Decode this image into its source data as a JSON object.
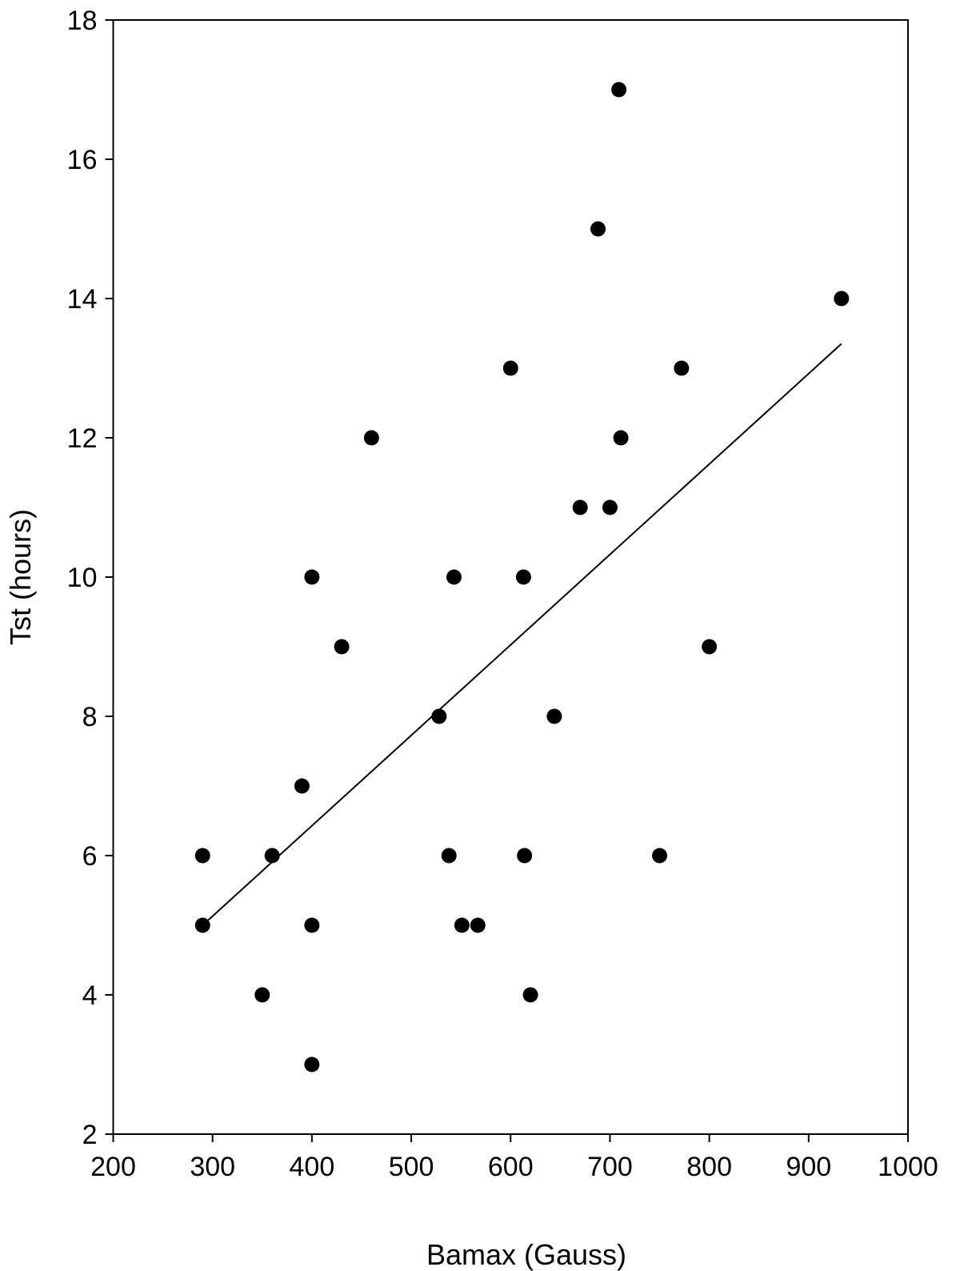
{
  "chart_data": {
    "type": "scatter",
    "title": "",
    "xlabel": "Bamax (Gauss)",
    "ylabel": "Tst (hours)",
    "xlim": [
      200,
      1000
    ],
    "ylim": [
      2,
      18
    ],
    "xticks": [
      200,
      300,
      400,
      500,
      600,
      700,
      800,
      900,
      1000
    ],
    "yticks": [
      2,
      4,
      6,
      8,
      10,
      12,
      14,
      16,
      18
    ],
    "grid": false,
    "legend": "none",
    "point_color": "#000000",
    "line_color": "#000000",
    "series": [
      {
        "type": "scatter",
        "points": [
          {
            "x": 290,
            "y": 6
          },
          {
            "x": 290,
            "y": 5
          },
          {
            "x": 350,
            "y": 4
          },
          {
            "x": 360,
            "y": 6
          },
          {
            "x": 390,
            "y": 7
          },
          {
            "x": 400,
            "y": 10
          },
          {
            "x": 400,
            "y": 5
          },
          {
            "x": 400,
            "y": 3
          },
          {
            "x": 430,
            "y": 9
          },
          {
            "x": 460,
            "y": 12
          },
          {
            "x": 528,
            "y": 8
          },
          {
            "x": 538,
            "y": 6
          },
          {
            "x": 543,
            "y": 10
          },
          {
            "x": 551,
            "y": 5
          },
          {
            "x": 567,
            "y": 5
          },
          {
            "x": 600,
            "y": 13
          },
          {
            "x": 613,
            "y": 10
          },
          {
            "x": 614,
            "y": 6
          },
          {
            "x": 620,
            "y": 4
          },
          {
            "x": 644,
            "y": 8
          },
          {
            "x": 670,
            "y": 11
          },
          {
            "x": 688,
            "y": 15
          },
          {
            "x": 700,
            "y": 11
          },
          {
            "x": 709,
            "y": 17
          },
          {
            "x": 711,
            "y": 12
          },
          {
            "x": 750,
            "y": 6
          },
          {
            "x": 772,
            "y": 13
          },
          {
            "x": 800,
            "y": 9
          },
          {
            "x": 933,
            "y": 14
          }
        ]
      },
      {
        "type": "line",
        "points": [
          {
            "x": 290,
            "y": 5.0
          },
          {
            "x": 933,
            "y": 13.35
          }
        ]
      }
    ]
  }
}
